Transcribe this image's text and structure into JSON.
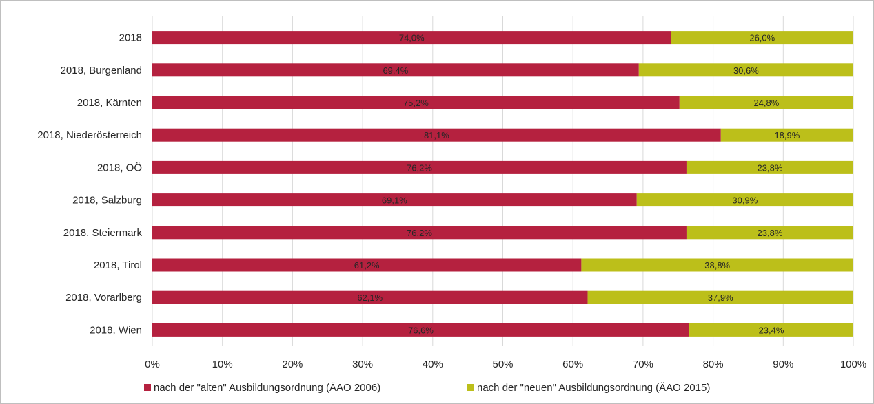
{
  "chart_data": {
    "type": "bar",
    "orientation": "horizontal",
    "stacked": true,
    "categories": [
      "2018",
      "2018, Burgenland",
      "2018, Kärnten",
      "2018, Niederösterreich",
      "2018, OÖ",
      "2018, Salzburg",
      "2018, Steiermark",
      "2018, Tirol",
      "2018, Vorarlberg",
      "2018, Wien"
    ],
    "series": [
      {
        "name": "nach der \"alten\" Ausbildungsordnung (ÄAO 2006)",
        "color": "#b5213f",
        "values": [
          74.0,
          69.4,
          75.2,
          81.1,
          76.2,
          69.1,
          76.2,
          61.2,
          62.1,
          76.6
        ],
        "labels": [
          "74,0%",
          "69,4%",
          "75,2%",
          "81,1%",
          "76,2%",
          "69,1%",
          "76,2%",
          "61,2%",
          "62,1%",
          "76,6%"
        ]
      },
      {
        "name": "nach der \"neuen\" Ausbildungsordnung (ÄAO 2015)",
        "color": "#bcbf1a",
        "values": [
          26.0,
          30.6,
          24.8,
          18.9,
          23.8,
          30.9,
          23.8,
          38.8,
          37.9,
          23.4
        ],
        "labels": [
          "26,0%",
          "30,6%",
          "24,8%",
          "18,9%",
          "23,8%",
          "30,9%",
          "23,8%",
          "38,8%",
          "37,9%",
          "23,4%"
        ]
      }
    ],
    "xlim": [
      0,
      100
    ],
    "xticks": [
      0,
      10,
      20,
      30,
      40,
      50,
      60,
      70,
      80,
      90,
      100
    ],
    "xtick_labels": [
      "0%",
      "10%",
      "20%",
      "30%",
      "40%",
      "50%",
      "60%",
      "70%",
      "80%",
      "90%",
      "100%"
    ],
    "grid": true,
    "gridline_color": "#d9d9d9",
    "legend_position": "bottom",
    "title": "",
    "xlabel": "",
    "ylabel": ""
  }
}
